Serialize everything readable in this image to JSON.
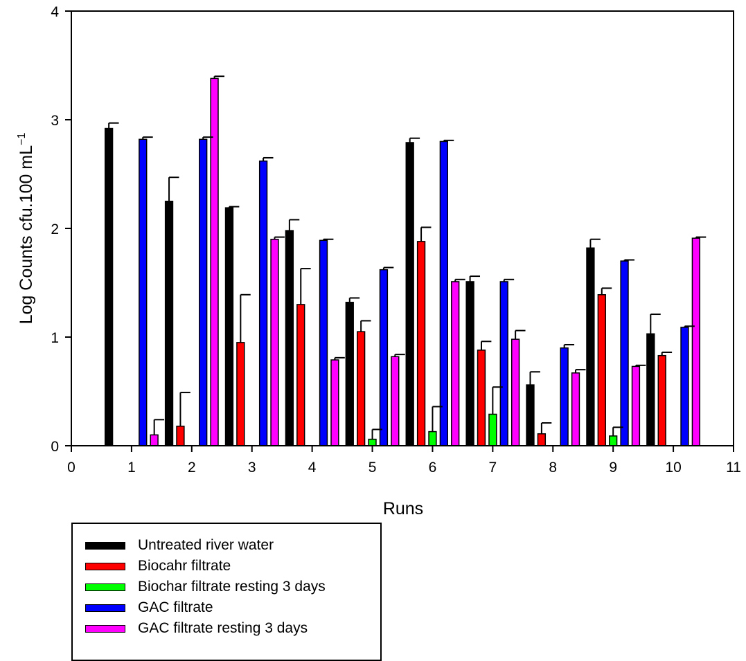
{
  "chart_data": {
    "type": "bar",
    "xlabel": "Runs",
    "ylabel": "Log Counts cfu.100 mL",
    "ylabel_superscript": "−1",
    "xlim": [
      0,
      11
    ],
    "ylim": [
      0,
      4
    ],
    "x_ticks": [
      "0",
      "1",
      "2",
      "3",
      "4",
      "5",
      "6",
      "7",
      "8",
      "9",
      "10",
      "11"
    ],
    "y_ticks": [
      "0",
      "1",
      "2",
      "3",
      "4"
    ],
    "categories": [
      1,
      2,
      3,
      4,
      5,
      6,
      7,
      8,
      9,
      10
    ],
    "grid": false,
    "legend_position": "bottom-left",
    "series": [
      {
        "name": "Untreated river water",
        "color": "#000000",
        "values": [
          2.92,
          2.25,
          2.19,
          1.98,
          1.32,
          2.79,
          1.51,
          0.56,
          1.82,
          1.03
        ],
        "errors": [
          0.05,
          0.22,
          0.01,
          0.1,
          0.04,
          0.04,
          0.05,
          0.12,
          0.08,
          0.18
        ]
      },
      {
        "name": "Biocahr filtrate",
        "color": "#ff0000",
        "values": [
          0,
          0.18,
          0.95,
          1.3,
          1.05,
          1.88,
          0.88,
          0.11,
          1.39,
          0.83
        ],
        "errors": [
          0,
          0.31,
          0.44,
          0.33,
          0.1,
          0.13,
          0.08,
          0.1,
          0.06,
          0.03
        ]
      },
      {
        "name": "Biochar filtrate resting 3 days",
        "color": "#00ff00",
        "values": [
          0,
          0,
          0,
          0,
          0.06,
          0.13,
          0.29,
          0,
          0.09,
          0
        ],
        "errors": [
          0,
          0,
          0,
          0,
          0.09,
          0.23,
          0.25,
          0,
          0.08,
          0
        ]
      },
      {
        "name": "GAC filtrate",
        "color": "#0000ff",
        "values": [
          2.82,
          2.82,
          2.62,
          1.89,
          1.62,
          2.8,
          1.51,
          0.9,
          1.7,
          1.09
        ],
        "errors": [
          0.02,
          0.02,
          0.03,
          0.01,
          0.02,
          0.01,
          0.02,
          0.03,
          0.01,
          0.01
        ]
      },
      {
        "name": "GAC filtrate resting 3 days",
        "color": "#ff00ff",
        "values": [
          0.1,
          3.38,
          1.9,
          0.79,
          0.82,
          1.51,
          0.98,
          0.67,
          0.73,
          1.91
        ],
        "errors": [
          0.14,
          0.02,
          0.02,
          0.02,
          0.02,
          0.02,
          0.08,
          0.03,
          0.01,
          0.01
        ]
      }
    ]
  }
}
